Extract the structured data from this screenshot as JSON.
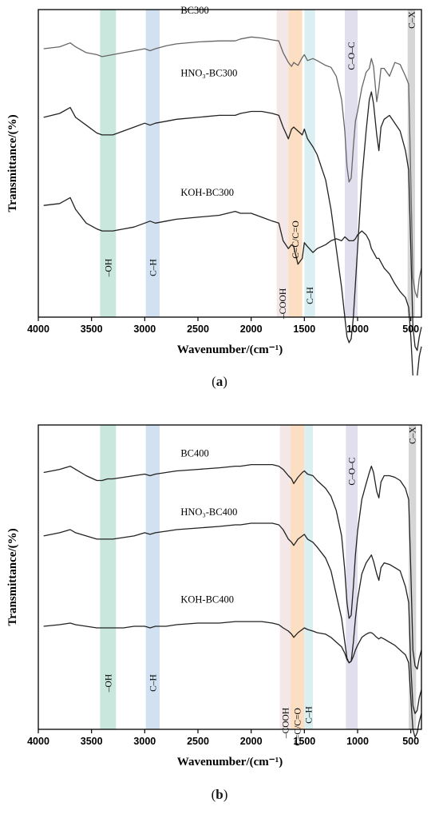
{
  "chart_data": [
    {
      "panel": "(a)",
      "caption_letter": "a",
      "type": "line",
      "xlabel": "Wavenumber/(cm⁻¹)",
      "ylabel": "Transmittance/(%)",
      "xlim": [
        4000,
        400
      ],
      "x_reversed": true,
      "xticks": [
        4000,
        3500,
        3000,
        2500,
        2000,
        1500,
        1000,
        500
      ],
      "y_ticks_shown": false,
      "grid": false,
      "bands": [
        {
          "label": "–OH",
          "from": 3420,
          "to": 3270,
          "color": "#bfe3d6"
        },
        {
          "label": "C–H",
          "from": 2990,
          "to": 2860,
          "color": "#c9dcef"
        },
        {
          "label": "–COOH",
          "from": 1760,
          "to": 1650,
          "color": "#f1e3e3"
        },
        {
          "label": "C=C/C=O",
          "from": 1650,
          "to": 1520,
          "color": "#fbd9b8"
        },
        {
          "label": "C–H",
          "from": 1500,
          "to": 1400,
          "color": "#d3ecef"
        },
        {
          "label": "C–O–C",
          "from": 1120,
          "to": 1000,
          "color": "#dcd8ea"
        },
        {
          "label": "C–X",
          "from": 530,
          "to": 460,
          "color": "#cfcfcf"
        }
      ],
      "series": [
        {
          "name": "BC300",
          "color": "#666666",
          "x": [
            3950,
            3800,
            3700,
            3650,
            3550,
            3450,
            3400,
            3350,
            3300,
            3200,
            3100,
            3000,
            2950,
            2900,
            2800,
            2700,
            2500,
            2300,
            2150,
            2100,
            2000,
            1900,
            1800,
            1740,
            1700,
            1650,
            1620,
            1600,
            1560,
            1520,
            1500,
            1470,
            1420,
            1380,
            1300,
            1250,
            1200,
            1150,
            1120,
            1100,
            1080,
            1060,
            1040,
            1020,
            1000,
            960,
            920,
            890,
            870,
            850,
            820,
            800,
            780,
            750,
            700,
            650,
            600,
            550,
            520,
            500,
            480,
            460,
            440,
            420,
            400
          ],
          "y": [
            0.12,
            0.13,
            0.15,
            0.13,
            0.1,
            0.09,
            0.08,
            0.085,
            0.09,
            0.1,
            0.11,
            0.12,
            0.11,
            0.12,
            0.135,
            0.145,
            0.155,
            0.16,
            0.16,
            0.17,
            0.18,
            0.175,
            0.165,
            0.16,
            0.1,
            0.05,
            0.03,
            0.05,
            0.035,
            0.075,
            0.09,
            0.06,
            0.07,
            0.06,
            0.035,
            0.025,
            -0.02,
            -0.14,
            -0.3,
            -0.48,
            -0.56,
            -0.54,
            -0.38,
            -0.25,
            -0.2,
            -0.08,
            0.0,
            0.02,
            0.07,
            0.03,
            -0.15,
            -0.08,
            0.02,
            0.02,
            -0.02,
            0.05,
            0.04,
            -0.02,
            -0.06,
            -0.55,
            -1.05,
            -1.12,
            -1.15,
            -1.05,
            -1.0
          ]
        },
        {
          "name": "HNO₃-BC300",
          "color": "#222222",
          "x": [
            3950,
            3800,
            3700,
            3650,
            3550,
            3450,
            3400,
            3350,
            3300,
            3200,
            3100,
            3000,
            2950,
            2900,
            2800,
            2700,
            2500,
            2300,
            2150,
            2100,
            2000,
            1900,
            1800,
            1740,
            1700,
            1650,
            1620,
            1600,
            1560,
            1520,
            1500,
            1470,
            1420,
            1380,
            1300,
            1250,
            1200,
            1150,
            1120,
            1100,
            1080,
            1060,
            1040,
            1020,
            1000,
            960,
            920,
            890,
            870,
            850,
            820,
            800,
            780,
            750,
            700,
            650,
            600,
            550,
            520,
            500,
            480,
            460,
            440,
            420,
            400
          ],
          "y": [
            -0.23,
            -0.21,
            -0.18,
            -0.23,
            -0.27,
            -0.31,
            -0.32,
            -0.32,
            -0.32,
            -0.3,
            -0.28,
            -0.26,
            -0.27,
            -0.26,
            -0.25,
            -0.24,
            -0.23,
            -0.22,
            -0.22,
            -0.21,
            -0.2,
            -0.2,
            -0.21,
            -0.22,
            -0.28,
            -0.34,
            -0.29,
            -0.28,
            -0.3,
            -0.32,
            -0.29,
            -0.34,
            -0.38,
            -0.42,
            -0.55,
            -0.7,
            -0.9,
            -1.1,
            -1.25,
            -1.35,
            -1.38,
            -1.36,
            -1.25,
            -1.08,
            -0.9,
            -0.55,
            -0.3,
            -0.14,
            -0.1,
            -0.16,
            -0.32,
            -0.4,
            -0.28,
            -0.24,
            -0.22,
            -0.26,
            -0.3,
            -0.4,
            -0.5,
            -0.9,
            -1.3,
            -1.4,
            -1.42,
            -1.35,
            -1.3
          ]
        },
        {
          "name": "KOH-BC300",
          "color": "#222222",
          "x": [
            3950,
            3800,
            3700,
            3650,
            3550,
            3450,
            3400,
            3350,
            3300,
            3200,
            3100,
            3000,
            2950,
            2900,
            2800,
            2700,
            2500,
            2300,
            2150,
            2100,
            2000,
            1900,
            1800,
            1740,
            1700,
            1650,
            1620,
            1600,
            1560,
            1520,
            1500,
            1470,
            1420,
            1380,
            1300,
            1250,
            1200,
            1150,
            1120,
            1100,
            1080,
            1060,
            1040,
            1020,
            1000,
            960,
            920,
            890,
            870,
            850,
            820,
            800,
            780,
            750,
            700,
            650,
            600,
            550,
            520,
            500,
            480,
            460,
            440,
            420,
            400
          ],
          "y": [
            -0.68,
            -0.67,
            -0.64,
            -0.7,
            -0.77,
            -0.8,
            -0.81,
            -0.81,
            -0.81,
            -0.8,
            -0.79,
            -0.77,
            -0.76,
            -0.77,
            -0.76,
            -0.75,
            -0.74,
            -0.73,
            -0.71,
            -0.72,
            -0.72,
            -0.74,
            -0.76,
            -0.77,
            -0.86,
            -0.9,
            -0.88,
            -0.89,
            -0.98,
            -0.95,
            -0.87,
            -0.89,
            -0.92,
            -0.9,
            -0.88,
            -0.86,
            -0.85,
            -0.86,
            -0.84,
            -0.85,
            -0.86,
            -0.86,
            -0.86,
            -0.85,
            -0.83,
            -0.81,
            -0.83,
            -0.86,
            -0.9,
            -0.92,
            -0.95,
            -0.95,
            -0.97,
            -1.0,
            -1.03,
            -1.08,
            -1.12,
            -1.15,
            -1.2,
            -1.35,
            -1.55,
            -1.6,
            -1.55,
            -1.45,
            -1.4
          ]
        }
      ]
    },
    {
      "panel": "(b)",
      "caption_letter": "b",
      "type": "line",
      "xlabel": "Wavenumber/(cm⁻¹)",
      "ylabel": "Transmittance/(%)",
      "xlim": [
        4000,
        400
      ],
      "x_reversed": true,
      "xticks": [
        4000,
        3500,
        3000,
        2500,
        2000,
        1500,
        1000,
        500
      ],
      "y_ticks_shown": false,
      "grid": false,
      "bands": [
        {
          "label": "–OH",
          "from": 3420,
          "to": 3270,
          "color": "#bfe3d6"
        },
        {
          "label": "C–H",
          "from": 2990,
          "to": 2860,
          "color": "#c9dcef"
        },
        {
          "label": "–COOH",
          "from": 1730,
          "to": 1630,
          "color": "#f1e3e3"
        },
        {
          "label": "C=C/C=O",
          "from": 1630,
          "to": 1500,
          "color": "#fbd9b8"
        },
        {
          "label": "C–H",
          "from": 1500,
          "to": 1420,
          "color": "#d3ecef"
        },
        {
          "label": "C–O–C",
          "from": 1110,
          "to": 1000,
          "color": "#dcd8ea"
        },
        {
          "label": "C–X",
          "from": 520,
          "to": 450,
          "color": "#cfcfcf"
        }
      ],
      "series": [
        {
          "name": "BC400",
          "color": "#222222",
          "x": [
            3950,
            3800,
            3700,
            3650,
            3550,
            3450,
            3400,
            3350,
            3300,
            3200,
            3100,
            3000,
            2950,
            2900,
            2800,
            2700,
            2500,
            2300,
            2150,
            2100,
            2000,
            1900,
            1800,
            1740,
            1700,
            1650,
            1620,
            1600,
            1560,
            1520,
            1500,
            1470,
            1420,
            1380,
            1300,
            1250,
            1200,
            1150,
            1120,
            1100,
            1080,
            1060,
            1040,
            1020,
            1000,
            960,
            920,
            890,
            870,
            850,
            820,
            800,
            780,
            750,
            700,
            650,
            600,
            550,
            520,
            500,
            480,
            460,
            440,
            420,
            400
          ],
          "y": [
            0.02,
            0.04,
            0.06,
            0.04,
            0.0,
            -0.03,
            -0.03,
            -0.02,
            -0.02,
            -0.01,
            0.0,
            0.01,
            0.0,
            0.01,
            0.02,
            0.03,
            0.04,
            0.05,
            0.06,
            0.06,
            0.07,
            0.07,
            0.07,
            0.06,
            0.04,
            0.0,
            -0.02,
            -0.05,
            -0.01,
            0.02,
            0.03,
            0.01,
            0.0,
            -0.03,
            -0.08,
            -0.13,
            -0.22,
            -0.38,
            -0.6,
            -0.8,
            -0.9,
            -0.88,
            -0.7,
            -0.5,
            -0.35,
            -0.15,
            -0.05,
            0.02,
            0.06,
            0.02,
            -0.1,
            -0.14,
            -0.04,
            0.0,
            0.0,
            -0.01,
            -0.03,
            -0.08,
            -0.15,
            -0.6,
            -1.1,
            -1.2,
            -1.22,
            -1.15,
            -1.1
          ]
        },
        {
          "name": "HNO₃-BC400",
          "color": "#222222",
          "x": [
            3950,
            3800,
            3700,
            3650,
            3550,
            3450,
            3400,
            3350,
            3300,
            3200,
            3100,
            3000,
            2950,
            2900,
            2800,
            2700,
            2500,
            2300,
            2150,
            2100,
            2000,
            1900,
            1800,
            1740,
            1700,
            1650,
            1620,
            1600,
            1560,
            1520,
            1500,
            1470,
            1420,
            1380,
            1300,
            1250,
            1200,
            1150,
            1120,
            1100,
            1080,
            1060,
            1040,
            1020,
            1000,
            960,
            920,
            890,
            870,
            850,
            820,
            800,
            780,
            750,
            700,
            650,
            600,
            550,
            520,
            500,
            480,
            460,
            440,
            420,
            400
          ],
          "y": [
            -0.38,
            -0.36,
            -0.34,
            -0.36,
            -0.38,
            -0.4,
            -0.4,
            -0.4,
            -0.4,
            -0.39,
            -0.38,
            -0.36,
            -0.37,
            -0.36,
            -0.35,
            -0.34,
            -0.33,
            -0.32,
            -0.31,
            -0.31,
            -0.3,
            -0.3,
            -0.3,
            -0.31,
            -0.34,
            -0.4,
            -0.42,
            -0.44,
            -0.4,
            -0.38,
            -0.37,
            -0.4,
            -0.42,
            -0.45,
            -0.52,
            -0.6,
            -0.75,
            -0.9,
            -1.05,
            -1.15,
            -1.18,
            -1.17,
            -1.05,
            -0.9,
            -0.78,
            -0.62,
            -0.55,
            -0.52,
            -0.5,
            -0.54,
            -0.62,
            -0.66,
            -0.58,
            -0.55,
            -0.56,
            -0.58,
            -0.6,
            -0.7,
            -0.8,
            -1.2,
            -1.45,
            -1.5,
            -1.48,
            -1.4,
            -1.35
          ]
        },
        {
          "name": "KOH-BC400",
          "color": "#222222",
          "x": [
            3950,
            3800,
            3700,
            3650,
            3550,
            3450,
            3400,
            3350,
            3300,
            3200,
            3100,
            3000,
            2950,
            2900,
            2800,
            2700,
            2500,
            2300,
            2150,
            2100,
            2000,
            1900,
            1800,
            1740,
            1700,
            1650,
            1620,
            1600,
            1560,
            1520,
            1500,
            1470,
            1420,
            1380,
            1300,
            1250,
            1200,
            1150,
            1120,
            1100,
            1080,
            1060,
            1040,
            1020,
            1000,
            960,
            920,
            890,
            870,
            850,
            820,
            800,
            780,
            750,
            700,
            650,
            600,
            550,
            520,
            500,
            480,
            460,
            440,
            420,
            400
          ],
          "y": [
            -0.95,
            -0.94,
            -0.93,
            -0.94,
            -0.95,
            -0.96,
            -0.96,
            -0.96,
            -0.96,
            -0.96,
            -0.95,
            -0.95,
            -0.96,
            -0.95,
            -0.95,
            -0.94,
            -0.93,
            -0.93,
            -0.92,
            -0.92,
            -0.92,
            -0.92,
            -0.93,
            -0.94,
            -0.96,
            -0.98,
            -1.0,
            -1.02,
            -0.99,
            -0.97,
            -0.96,
            -0.97,
            -0.98,
            -0.99,
            -1.0,
            -1.02,
            -1.05,
            -1.08,
            -1.12,
            -1.16,
            -1.18,
            -1.17,
            -1.14,
            -1.1,
            -1.07,
            -1.02,
            -1.0,
            -0.99,
            -0.99,
            -1.0,
            -1.02,
            -1.03,
            -1.02,
            -1.03,
            -1.05,
            -1.07,
            -1.1,
            -1.13,
            -1.18,
            -1.4,
            -1.6,
            -1.65,
            -1.62,
            -1.55,
            -1.5
          ]
        }
      ]
    }
  ]
}
